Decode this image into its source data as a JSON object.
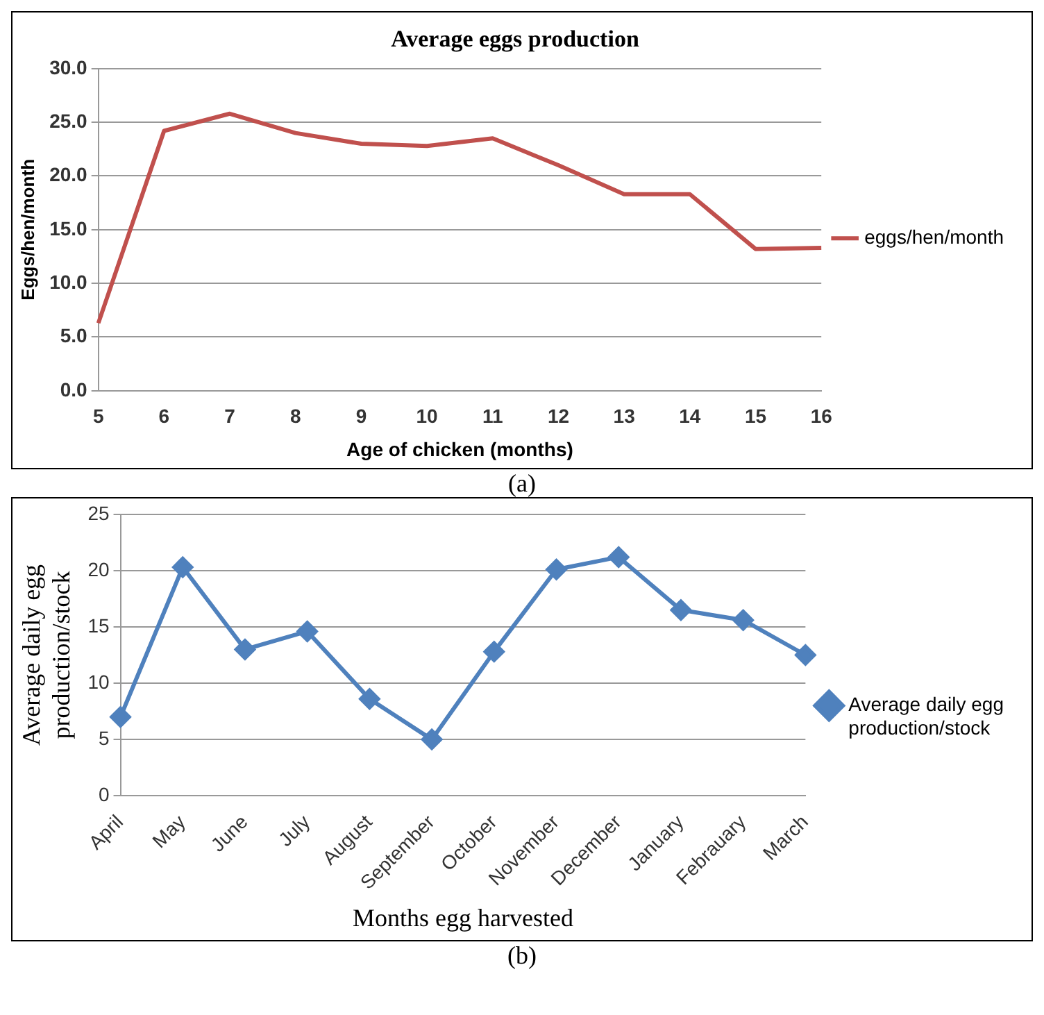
{
  "chart_data": [
    {
      "type": "line",
      "title": "Average eggs production",
      "xlabel": "Age of chicken (months)",
      "ylabel": "Eggs/hen/month",
      "categories": [
        "5",
        "6",
        "7",
        "8",
        "9",
        "10",
        "11",
        "12",
        "13",
        "14",
        "15",
        "16"
      ],
      "series": [
        {
          "name": "eggs/hen/month",
          "color": "#c0504d",
          "values": [
            6.3,
            24.2,
            25.8,
            24.0,
            23.0,
            22.8,
            23.5,
            21.0,
            18.3,
            18.3,
            13.2,
            13.3
          ]
        }
      ],
      "ylim": [
        0,
        30
      ],
      "yticks": [
        {
          "value": 0,
          "label": "0.0"
        },
        {
          "value": 5,
          "label": "5.0"
        },
        {
          "value": 10,
          "label": "10.0"
        },
        {
          "value": 15,
          "label": "15.0"
        },
        {
          "value": 20,
          "label": "20.0"
        },
        {
          "value": 25,
          "label": "25.0"
        },
        {
          "value": 30,
          "label": "30.0"
        }
      ],
      "grid": "y",
      "legend": "right",
      "marker": "none",
      "annotations": [
        "(a)"
      ]
    },
    {
      "type": "line",
      "xlabel": "Months egg harvested",
      "ylabel": "Average daily egg production/stock",
      "categories": [
        "April",
        "May",
        "June",
        "July",
        "August",
        "September",
        "October",
        "November",
        "December",
        "January",
        "Febrauary",
        "March"
      ],
      "series": [
        {
          "name": "Average daily egg production/stock",
          "color": "#4f81bd",
          "values": [
            7.0,
            20.3,
            13.0,
            14.6,
            8.6,
            5.0,
            12.8,
            20.1,
            21.2,
            16.5,
            15.6,
            12.5
          ]
        }
      ],
      "ylim": [
        0,
        25
      ],
      "yticks": [
        0,
        5,
        10,
        15,
        20,
        25
      ],
      "grid": "y",
      "legend": "right",
      "marker": "diamond",
      "annotations": [
        "(b)"
      ]
    }
  ]
}
